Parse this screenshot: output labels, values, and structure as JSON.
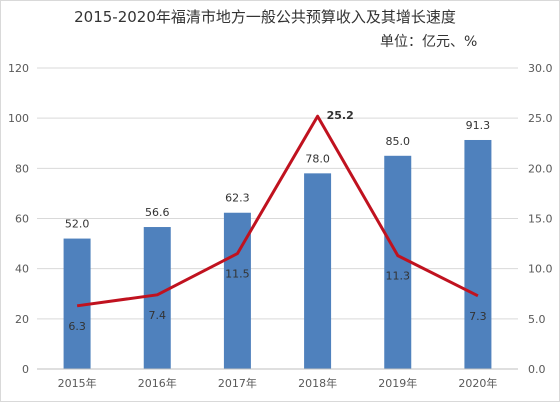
{
  "chart_data": {
    "type": "bar+line",
    "title": "2015-2020年福清市地方一般公共预算收入及其增长速度",
    "subtitle": "单位：亿元、%",
    "categories": [
      "2015年",
      "2016年",
      "2017年",
      "2018年",
      "2019年",
      "2020年"
    ],
    "series": [
      {
        "kind": "bar",
        "axis": "left",
        "values": [
          52.0,
          56.6,
          62.3,
          78.0,
          85.0,
          91.3
        ],
        "labels": [
          "52.0",
          "56.6",
          "62.3",
          "78.0",
          "85.0",
          "91.3"
        ],
        "color": "#4f81bd"
      },
      {
        "kind": "line",
        "axis": "right",
        "values": [
          6.3,
          7.4,
          11.5,
          25.2,
          11.3,
          7.3
        ],
        "labels": [
          "6.3",
          "7.4",
          "11.5",
          "25.2",
          "11.3",
          "7.3"
        ],
        "color": "#c0121f"
      }
    ],
    "y_left": {
      "min": 0,
      "max": 120,
      "ticks": [
        "0",
        "20",
        "40",
        "60",
        "80",
        "100",
        "120"
      ]
    },
    "y_right": {
      "min": 0,
      "max": 30,
      "ticks": [
        "0.0",
        "5.0",
        "10.0",
        "15.0",
        "20.0",
        "25.0",
        "30.0"
      ]
    },
    "grid": true,
    "legend": "none"
  }
}
